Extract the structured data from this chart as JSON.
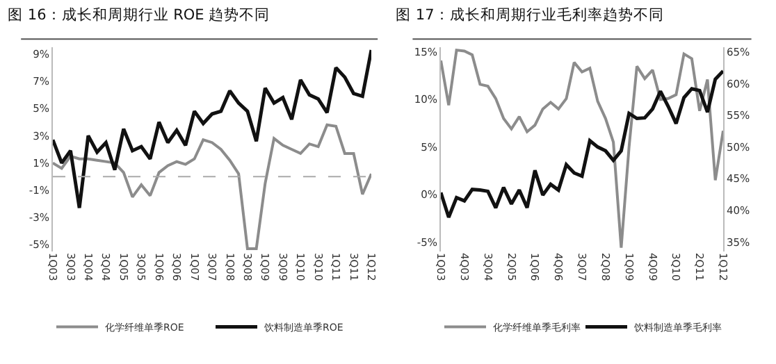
{
  "chart_data": [
    {
      "type": "line",
      "title": "图 16：成长和周期行业 ROE 趋势不同",
      "categories": [
        "1Q03",
        null,
        "3Q03",
        null,
        "1Q04",
        null,
        "3Q04",
        null,
        "1Q05",
        null,
        "3Q05",
        null,
        "1Q06",
        null,
        "3Q06",
        null,
        "1Q07",
        null,
        "3Q07",
        null,
        "1Q08",
        null,
        "3Q08",
        null,
        "1Q09",
        null,
        "3Q09",
        null,
        "1Q10",
        null,
        "3Q10",
        null,
        "1Q11",
        null,
        "3Q11",
        null,
        "1Q12"
      ],
      "series": [
        {
          "name": "化学纤维单季ROE",
          "color": "#8c8c8c",
          "values": [
            1.0,
            0.6,
            1.5,
            1.3,
            1.3,
            1.2,
            1.1,
            1.0,
            0.3,
            -1.5,
            -0.6,
            -1.4,
            0.3,
            0.8,
            1.1,
            0.9,
            1.3,
            2.7,
            2.5,
            2.0,
            1.2,
            0.2,
            -5.3,
            -5.3,
            -0.5,
            2.8,
            2.3,
            2.0,
            1.7,
            2.4,
            2.2,
            3.8,
            3.7,
            1.7,
            1.7,
            -1.3,
            0.2
          ]
        },
        {
          "name": "饮料制造单季ROE",
          "color": "#111111",
          "values": [
            2.7,
            1.0,
            1.9,
            -2.3,
            3.0,
            1.8,
            2.5,
            0.5,
            3.5,
            1.9,
            2.2,
            1.3,
            4.0,
            2.5,
            3.4,
            2.3,
            4.8,
            3.9,
            4.6,
            4.8,
            6.3,
            5.4,
            4.8,
            2.6,
            6.5,
            5.4,
            5.8,
            4.2,
            7.1,
            6.0,
            5.7,
            4.7,
            8.0,
            7.3,
            6.1,
            5.9,
            9.3
          ]
        }
      ],
      "ylim": [
        -5.5,
        9.5
      ],
      "yticks": [
        {
          "value": -5,
          "label": "-5%"
        },
        {
          "value": -3,
          "label": "-3%"
        },
        {
          "value": -1,
          "label": "-1%"
        },
        {
          "value": 1,
          "label": "1%"
        },
        {
          "value": 3,
          "label": "3%"
        },
        {
          "value": 5,
          "label": "5%"
        },
        {
          "value": 7,
          "label": "7%"
        },
        {
          "value": 9,
          "label": "9%"
        }
      ],
      "ref_lines": [
        {
          "axis": "y",
          "value": 0,
          "color": "#aaaaaa",
          "line_style": "dashed"
        }
      ],
      "legend": "bottom",
      "grid": false
    },
    {
      "type": "line",
      "title": "图 17：成长和周期行业毛利率趋势不同",
      "categories": [
        "1Q03",
        null,
        null,
        "4Q03",
        null,
        null,
        "3Q04",
        null,
        null,
        "2Q05",
        null,
        null,
        "1Q06",
        null,
        null,
        "4Q06",
        null,
        null,
        "3Q07",
        null,
        null,
        "2Q08",
        null,
        null,
        "1Q09",
        null,
        null,
        "4Q09",
        null,
        null,
        "3Q10",
        null,
        null,
        "2Q11",
        null,
        null,
        "1Q12"
      ],
      "series": [
        {
          "name": "化学纤维单季毛利率",
          "color": "#8c8c8c",
          "values": [
            14.1,
            9.4,
            15.2,
            15.1,
            14.7,
            11.6,
            11.4,
            10.1,
            8.0,
            6.9,
            8.2,
            6.6,
            7.3,
            9.0,
            9.7,
            9.0,
            10.1,
            13.9,
            12.9,
            13.3,
            9.8,
            8.0,
            5.5,
            -5.6,
            5.0,
            13.5,
            12.2,
            13.1,
            10.0,
            10.1,
            10.5,
            14.8,
            14.3,
            8.8,
            12.1,
            1.5,
            6.7
          ]
        },
        {
          "name": "饮料制造单季毛利率",
          "color": "#111111",
          "axis": "y2",
          "values": [
            42.8,
            38.9,
            42.0,
            41.5,
            43.3,
            43.2,
            43.0,
            40.4,
            43.6,
            41.0,
            43.2,
            40.4,
            46.3,
            42.4,
            44.1,
            43.2,
            47.2,
            45.9,
            45.4,
            51.0,
            50.0,
            49.4,
            47.9,
            49.4,
            55.3,
            54.5,
            54.6,
            56.0,
            58.8,
            56.4,
            53.7,
            57.8,
            59.2,
            58.9,
            55.5,
            60.7,
            62.0
          ]
        }
      ],
      "ylim": [
        -6,
        15.5
      ],
      "yticks": [
        {
          "value": -5,
          "label": "-5%"
        },
        {
          "value": 0,
          "label": "0%"
        },
        {
          "value": 5,
          "label": "5%"
        },
        {
          "value": 10,
          "label": "10%"
        },
        {
          "value": 15,
          "label": "15%"
        }
      ],
      "y2lim": [
        33.5,
        65.75
      ],
      "y2ticks": [
        {
          "value": 35,
          "label": "35%"
        },
        {
          "value": 40,
          "label": "40%"
        },
        {
          "value": 45,
          "label": "45%"
        },
        {
          "value": 50,
          "label": "50%"
        },
        {
          "value": 55,
          "label": "55%"
        },
        {
          "value": 60,
          "label": "60%"
        },
        {
          "value": 65,
          "label": "65%"
        }
      ],
      "legend": "bottom",
      "grid": false
    }
  ]
}
